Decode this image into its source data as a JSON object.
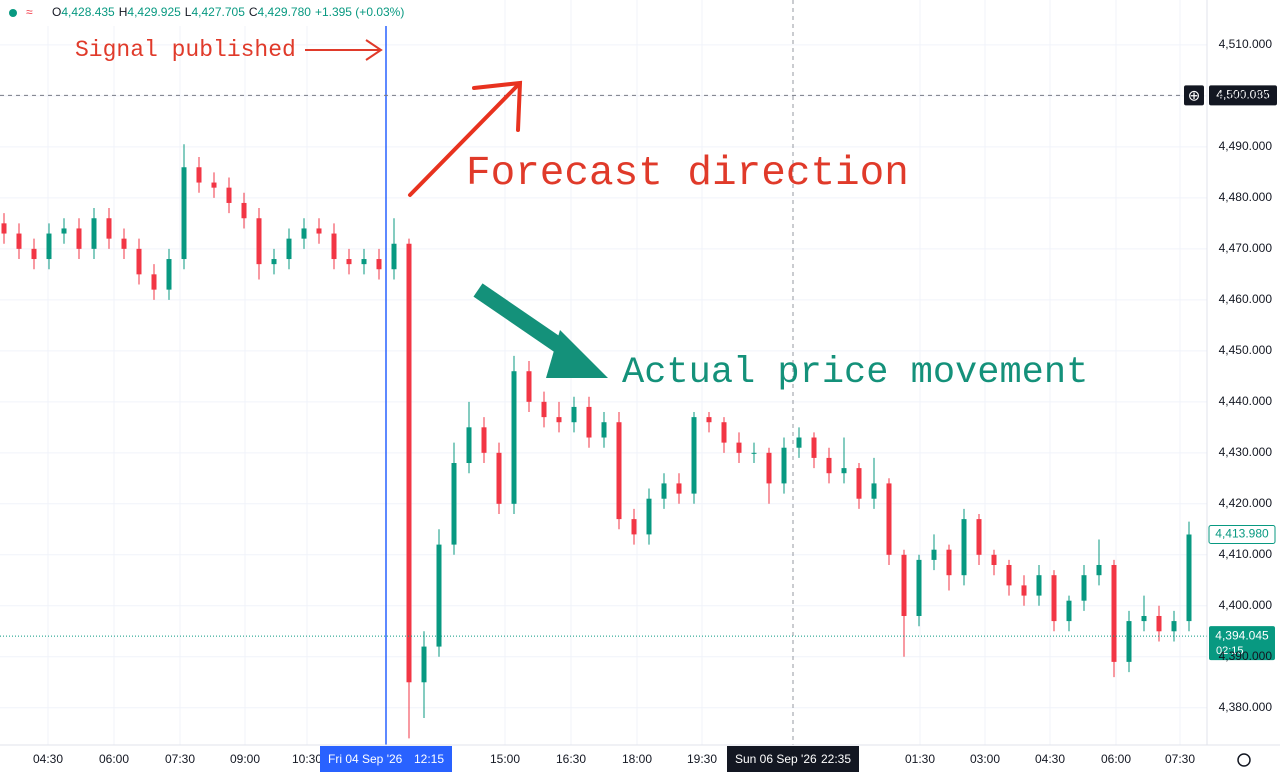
{
  "chart_data": {
    "type": "candlestick",
    "legend_ohlc": [
      {
        "label": "O",
        "value": "4,428.435"
      },
      {
        "label": "H",
        "value": "4,429.925"
      },
      {
        "label": "L",
        "value": "4,427.705"
      },
      {
        "label": "C",
        "value": "4,429.780"
      }
    ],
    "change": "+1.395 (+0.03%)",
    "annotations": [
      "Signal published",
      "Forecast direction",
      "Actual price movement"
    ],
    "up_color": "#089981",
    "down_color": "#f23645",
    "ylim": [
      4372.7,
      4518.8
    ],
    "yticks": [
      {
        "value": 4380,
        "label": "4,380.000"
      },
      {
        "value": 4390,
        "label": "4,390.000"
      },
      {
        "value": 4400,
        "label": "4,400.000"
      },
      {
        "value": 4410,
        "label": "4,410.000"
      },
      {
        "value": 4420,
        "label": "4,420.000"
      },
      {
        "value": 4430,
        "label": "4,430.000"
      },
      {
        "value": 4440,
        "label": "4,440.000"
      },
      {
        "value": 4450,
        "label": "4,450.000"
      },
      {
        "value": 4460,
        "label": "4,460.000"
      },
      {
        "value": 4470,
        "label": "4,470.000"
      },
      {
        "value": 4480,
        "label": "4,480.000"
      },
      {
        "value": 4490,
        "label": "4,490.000"
      },
      {
        "value": 4500,
        "label": "4,500.000"
      },
      {
        "value": 4510,
        "label": "4,510.000"
      }
    ],
    "xtick_labels": [
      "04:30",
      "06:00",
      "07:30",
      "09:00",
      "10:30",
      "15:00",
      "16:30",
      "18:00",
      "19:30",
      "01:30",
      "03:00",
      "04:30",
      "06:00",
      "07:30"
    ],
    "time_markers": [
      {
        "date": "Fri 04 Sep '26",
        "time": "12:15"
      },
      {
        "date": "Sun 06 Sep '26",
        "time": "22:35"
      }
    ],
    "crosshair_price": {
      "value": 4500.085,
      "label": "4,500.085"
    },
    "last_price": {
      "value": 4413.98,
      "label": "4,413.980"
    },
    "current_price": {
      "value": 4394.045,
      "label": "4,394.045",
      "countdown": "02:15"
    },
    "open": [
      4475,
      4473,
      4470,
      4468,
      4473,
      4474,
      4470,
      4476,
      4472,
      4470,
      4465,
      4462,
      4468,
      4486,
      4483,
      4482,
      4479,
      4476,
      4467,
      4468,
      4472,
      4474,
      4473,
      4468,
      4467,
      4468,
      4466,
      4471,
      4385,
      4392,
      4412,
      4428,
      4435,
      4430,
      4420,
      4446,
      4440,
      4437,
      4436,
      4439,
      4433,
      4436,
      4417,
      4414,
      4421,
      4424,
      4422,
      4437,
      4436,
      4432,
      4430,
      4430,
      4424,
      4431,
      4433,
      4429,
      4426,
      4427,
      4421,
      4424,
      4410,
      4398,
      4409,
      4411,
      4406,
      4417,
      4410,
      4408,
      4404,
      4402,
      4406,
      4397,
      4401,
      4406,
      4408,
      4389,
      4397,
      4398,
      4395,
      4397
    ],
    "high": [
      4477,
      4475,
      4472,
      4475,
      4476,
      4476,
      4478,
      4478,
      4474,
      4472,
      4467,
      4470,
      4490.5,
      4488,
      4485,
      4484,
      4481,
      4478,
      4470,
      4474,
      4476,
      4476,
      4475,
      4470,
      4470,
      4470,
      4476,
      4472,
      4395,
      4415,
      4432,
      4440,
      4437,
      4432,
      4449,
      4448,
      4442,
      4440,
      4441,
      4441,
      4438,
      4438,
      4419,
      4423,
      4426,
      4426,
      4438,
      4438,
      4437,
      4434,
      4432,
      4431,
      4433,
      4435,
      4434,
      4431,
      4433,
      4428,
      4429,
      4425,
      4411,
      4410,
      4414,
      4412,
      4419,
      4418,
      4411,
      4409,
      4406,
      4408,
      4407,
      4402,
      4408,
      4413,
      4409,
      4399,
      4402,
      4400,
      4399,
      4416.5
    ],
    "low": [
      4471,
      4468,
      4466,
      4466,
      4471,
      4468,
      4468,
      4470,
      4468,
      4463,
      4460,
      4460,
      4466,
      4481,
      4480,
      4477,
      4474,
      4464,
      4465,
      4466,
      4470,
      4471,
      4466,
      4465,
      4465,
      4464,
      4464,
      4374,
      4378,
      4390,
      4410,
      4426,
      4428,
      4418,
      4418,
      4438,
      4435,
      4434,
      4434,
      4431,
      4431,
      4415,
      4412,
      4412,
      4419,
      4420,
      4420,
      4434,
      4430,
      4428,
      4428,
      4420,
      4422,
      4429,
      4427,
      4424,
      4424,
      4419,
      4419,
      4408,
      4390,
      4396,
      4407,
      4403,
      4404,
      4408,
      4406,
      4402,
      4400,
      4400,
      4395,
      4395,
      4399,
      4404,
      4386,
      4387,
      4395,
      4393,
      4393,
      4395
    ],
    "close": [
      4473,
      4470,
      4468,
      4473,
      4474,
      4470,
      4476,
      4472,
      4470,
      4465,
      4462,
      4468,
      4486,
      4483,
      4482,
      4479,
      4476,
      4467,
      4468,
      4472,
      4474,
      4473,
      4468,
      4467,
      4468,
      4466,
      4471,
      4385,
      4392,
      4412,
      4428,
      4435,
      4430,
      4420,
      4446,
      4440,
      4437,
      4436,
      4439,
      4433,
      4436,
      4417,
      4414,
      4421,
      4424,
      4422,
      4437,
      4436,
      4432,
      4430,
      4430,
      4424,
      4431,
      4433,
      4429,
      4426,
      4427,
      4421,
      4424,
      4410,
      4398,
      4409,
      4411,
      4406,
      4417,
      4410,
      4408,
      4404,
      4402,
      4406,
      4397,
      4401,
      4406,
      4408,
      4389,
      4397,
      4398,
      4395,
      4397,
      4413.98
    ]
  }
}
